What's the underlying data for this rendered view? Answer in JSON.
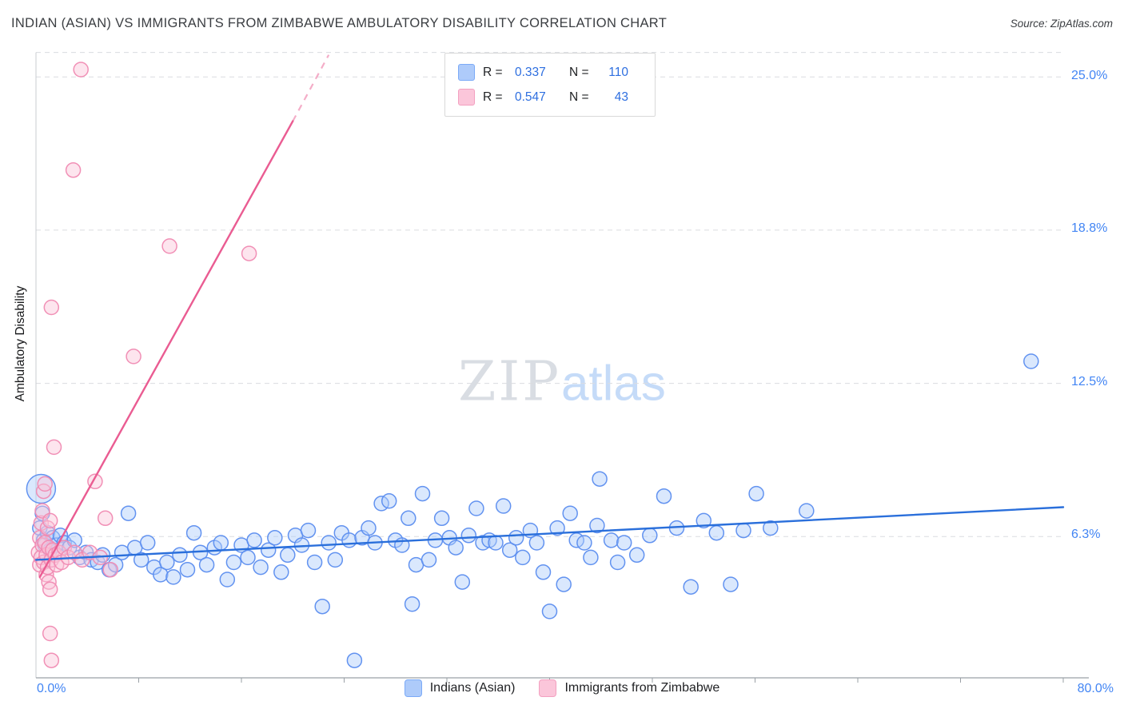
{
  "header": {
    "title": "INDIAN (ASIAN) VS IMMIGRANTS FROM ZIMBABWE AMBULATORY DISABILITY CORRELATION CHART",
    "source": "Source: ZipAtlas.com"
  },
  "watermark": {
    "part1": "ZIP",
    "part2": "atlas"
  },
  "axes": {
    "y_label": "Ambulatory Disability",
    "y_tick_labels": [
      "25.0%",
      "18.8%",
      "12.5%",
      "6.3%"
    ],
    "x_min": "0.0%",
    "x_max": "80.0%"
  },
  "legend_box": {
    "rows": [
      {
        "r_label": "R =",
        "r_value": "0.337",
        "n_label": "N =",
        "n_value": "110"
      },
      {
        "r_label": "R =",
        "r_value": "0.547",
        "n_label": "N =",
        "n_value": "43"
      }
    ]
  },
  "bottom_legend": {
    "items": [
      {
        "label": "Indians (Asian)"
      },
      {
        "label": "Immigrants from Zimbabwe"
      }
    ]
  },
  "colors": {
    "blue_fill": "#AECBFA",
    "blue_stroke": "#5B8DEF",
    "blue_line": "#2A6FDB",
    "pink_fill": "#FBC6DA",
    "pink_stroke": "#F08AB2",
    "pink_line": "#EA5C92",
    "grid": "#DADCE0",
    "axis": "#9AA0A6",
    "tick_label": "#4285F4"
  },
  "chart_data": {
    "type": "scatter",
    "title": "INDIAN (ASIAN) VS IMMIGRANTS FROM ZIMBABWE AMBULATORY DISABILITY CORRELATION CHART",
    "xlabel": "",
    "ylabel": "Ambulatory Disability",
    "xlim": [
      0,
      80
    ],
    "ylim": [
      0,
      26
    ],
    "x_unit": "%",
    "y_unit": "%",
    "grid": "horizontal-dashed",
    "legend_position": "top-center",
    "gridlines": [
      26,
      25,
      18.75,
      12.5,
      6.25
    ],
    "series": [
      {
        "name": "indians-asian",
        "label": "Indians (Asian)",
        "r": 0.337,
        "n": 110,
        "fill": "#AECBFA",
        "stroke": "#5B8DEF",
        "line": "#2A6FDB",
        "trend": {
          "x1": 0,
          "y1": 5.3,
          "x2": 80,
          "y2": 7.45
        },
        "points": [
          [
            0.4,
            8.2,
            18
          ],
          [
            0.3,
            6.6
          ],
          [
            0.5,
            7.2
          ],
          [
            0.6,
            6.1
          ],
          [
            0.7,
            5.9
          ],
          [
            0.9,
            6.4
          ],
          [
            1.1,
            5.7
          ],
          [
            1.3,
            6.2
          ],
          [
            1.6,
            5.9
          ],
          [
            1.9,
            6.3
          ],
          [
            2.2,
            6.0
          ],
          [
            2.6,
            5.8
          ],
          [
            3.0,
            6.1
          ],
          [
            3.4,
            5.4
          ],
          [
            3.9,
            5.6
          ],
          [
            4.3,
            5.3
          ],
          [
            4.8,
            5.2
          ],
          [
            5.2,
            5.5
          ],
          [
            5.7,
            4.9
          ],
          [
            6.2,
            5.1
          ],
          [
            6.7,
            5.6
          ],
          [
            7.2,
            7.2
          ],
          [
            7.7,
            5.8
          ],
          [
            8.2,
            5.3
          ],
          [
            8.7,
            6.0
          ],
          [
            9.2,
            5.0
          ],
          [
            9.7,
            4.7
          ],
          [
            10.2,
            5.2
          ],
          [
            10.7,
            4.6
          ],
          [
            11.2,
            5.5
          ],
          [
            11.8,
            4.9
          ],
          [
            12.3,
            6.4
          ],
          [
            12.8,
            5.6
          ],
          [
            13.3,
            5.1
          ],
          [
            13.9,
            5.8
          ],
          [
            14.4,
            6.0
          ],
          [
            14.9,
            4.5
          ],
          [
            15.4,
            5.2
          ],
          [
            16.0,
            5.9
          ],
          [
            16.5,
            5.4
          ],
          [
            17.0,
            6.1
          ],
          [
            17.5,
            5.0
          ],
          [
            18.1,
            5.7
          ],
          [
            18.6,
            6.2
          ],
          [
            19.1,
            4.8
          ],
          [
            19.6,
            5.5
          ],
          [
            20.2,
            6.3
          ],
          [
            20.7,
            5.9
          ],
          [
            21.2,
            6.5
          ],
          [
            21.7,
            5.2
          ],
          [
            22.3,
            3.4
          ],
          [
            22.8,
            6.0
          ],
          [
            23.3,
            5.3
          ],
          [
            23.8,
            6.4
          ],
          [
            24.4,
            6.1
          ],
          [
            24.8,
            1.2
          ],
          [
            25.4,
            6.2
          ],
          [
            25.9,
            6.6
          ],
          [
            26.4,
            6.0
          ],
          [
            26.9,
            7.6
          ],
          [
            27.5,
            7.7
          ],
          [
            28.0,
            6.1
          ],
          [
            28.5,
            5.9
          ],
          [
            29.0,
            7.0
          ],
          [
            29.3,
            3.5
          ],
          [
            29.6,
            5.1
          ],
          [
            30.1,
            8.0
          ],
          [
            30.6,
            5.3
          ],
          [
            31.1,
            6.1
          ],
          [
            31.6,
            7.0
          ],
          [
            32.2,
            6.2
          ],
          [
            32.7,
            5.8
          ],
          [
            33.2,
            4.4
          ],
          [
            33.7,
            6.3
          ],
          [
            34.3,
            7.4
          ],
          [
            34.8,
            6.0
          ],
          [
            35.3,
            6.1
          ],
          [
            35.8,
            6.0
          ],
          [
            36.4,
            7.5
          ],
          [
            36.9,
            5.7
          ],
          [
            37.4,
            6.2
          ],
          [
            37.9,
            5.4
          ],
          [
            38.5,
            6.5
          ],
          [
            39.0,
            6.0
          ],
          [
            39.5,
            4.8
          ],
          [
            40.0,
            3.2
          ],
          [
            40.6,
            6.6
          ],
          [
            41.1,
            4.3
          ],
          [
            41.6,
            7.2
          ],
          [
            42.1,
            6.1
          ],
          [
            42.7,
            6.0
          ],
          [
            43.2,
            5.4
          ],
          [
            43.7,
            6.7
          ],
          [
            43.9,
            8.6
          ],
          [
            44.8,
            6.1
          ],
          [
            45.3,
            5.2
          ],
          [
            45.8,
            6.0
          ],
          [
            46.8,
            5.5
          ],
          [
            47.8,
            6.3
          ],
          [
            48.9,
            7.9
          ],
          [
            49.9,
            6.6
          ],
          [
            51.0,
            4.2
          ],
          [
            52.0,
            6.9
          ],
          [
            53.0,
            6.4
          ],
          [
            54.1,
            4.3
          ],
          [
            55.1,
            6.5
          ],
          [
            56.1,
            8.0
          ],
          [
            57.2,
            6.6
          ],
          [
            60.0,
            7.3
          ],
          [
            77.5,
            13.4
          ]
        ]
      },
      {
        "name": "immigrants-zimbabwe",
        "label": "Immigrants from Zimbabwe",
        "r": 0.547,
        "n": 43,
        "fill": "#FBC6DA",
        "stroke": "#F08AB2",
        "line": "#EA5C92",
        "trend": {
          "x1": 0.3,
          "y1": 4.6,
          "x2": 20.0,
          "y2": 23.2
        },
        "trend_ext": {
          "x1": 20.0,
          "y1": 23.2,
          "x2": 22.8,
          "y2": 25.9
        },
        "points": [
          [
            0.2,
            5.6
          ],
          [
            0.3,
            6.2
          ],
          [
            0.3,
            5.1
          ],
          [
            0.4,
            6.8
          ],
          [
            0.4,
            5.4
          ],
          [
            0.5,
            7.3
          ],
          [
            0.5,
            5.9
          ],
          [
            0.6,
            8.1
          ],
          [
            0.6,
            5.2
          ],
          [
            0.7,
            8.4
          ],
          [
            0.7,
            6.0
          ],
          [
            0.8,
            5.5
          ],
          [
            0.8,
            4.7
          ],
          [
            0.9,
            6.6
          ],
          [
            0.9,
            5.0
          ],
          [
            1.0,
            5.8
          ],
          [
            1.0,
            4.4
          ],
          [
            1.1,
            6.9
          ],
          [
            1.1,
            4.1
          ],
          [
            1.1,
            2.3
          ],
          [
            1.2,
            1.2
          ],
          [
            1.2,
            5.3
          ],
          [
            1.3,
            5.7
          ],
          [
            1.4,
            9.9
          ],
          [
            1.2,
            15.6
          ],
          [
            1.5,
            5.5
          ],
          [
            1.6,
            5.1
          ],
          [
            1.8,
            5.6
          ],
          [
            2.0,
            5.2
          ],
          [
            2.2,
            5.8
          ],
          [
            2.5,
            5.4
          ],
          [
            2.9,
            21.2
          ],
          [
            3.0,
            5.6
          ],
          [
            3.5,
            25.3
          ],
          [
            3.6,
            5.3
          ],
          [
            4.2,
            5.6
          ],
          [
            4.6,
            8.5
          ],
          [
            5.0,
            5.4
          ],
          [
            5.4,
            7.0
          ],
          [
            5.8,
            4.9
          ],
          [
            7.6,
            13.6
          ],
          [
            10.4,
            18.1
          ],
          [
            16.6,
            17.8
          ]
        ]
      }
    ]
  }
}
